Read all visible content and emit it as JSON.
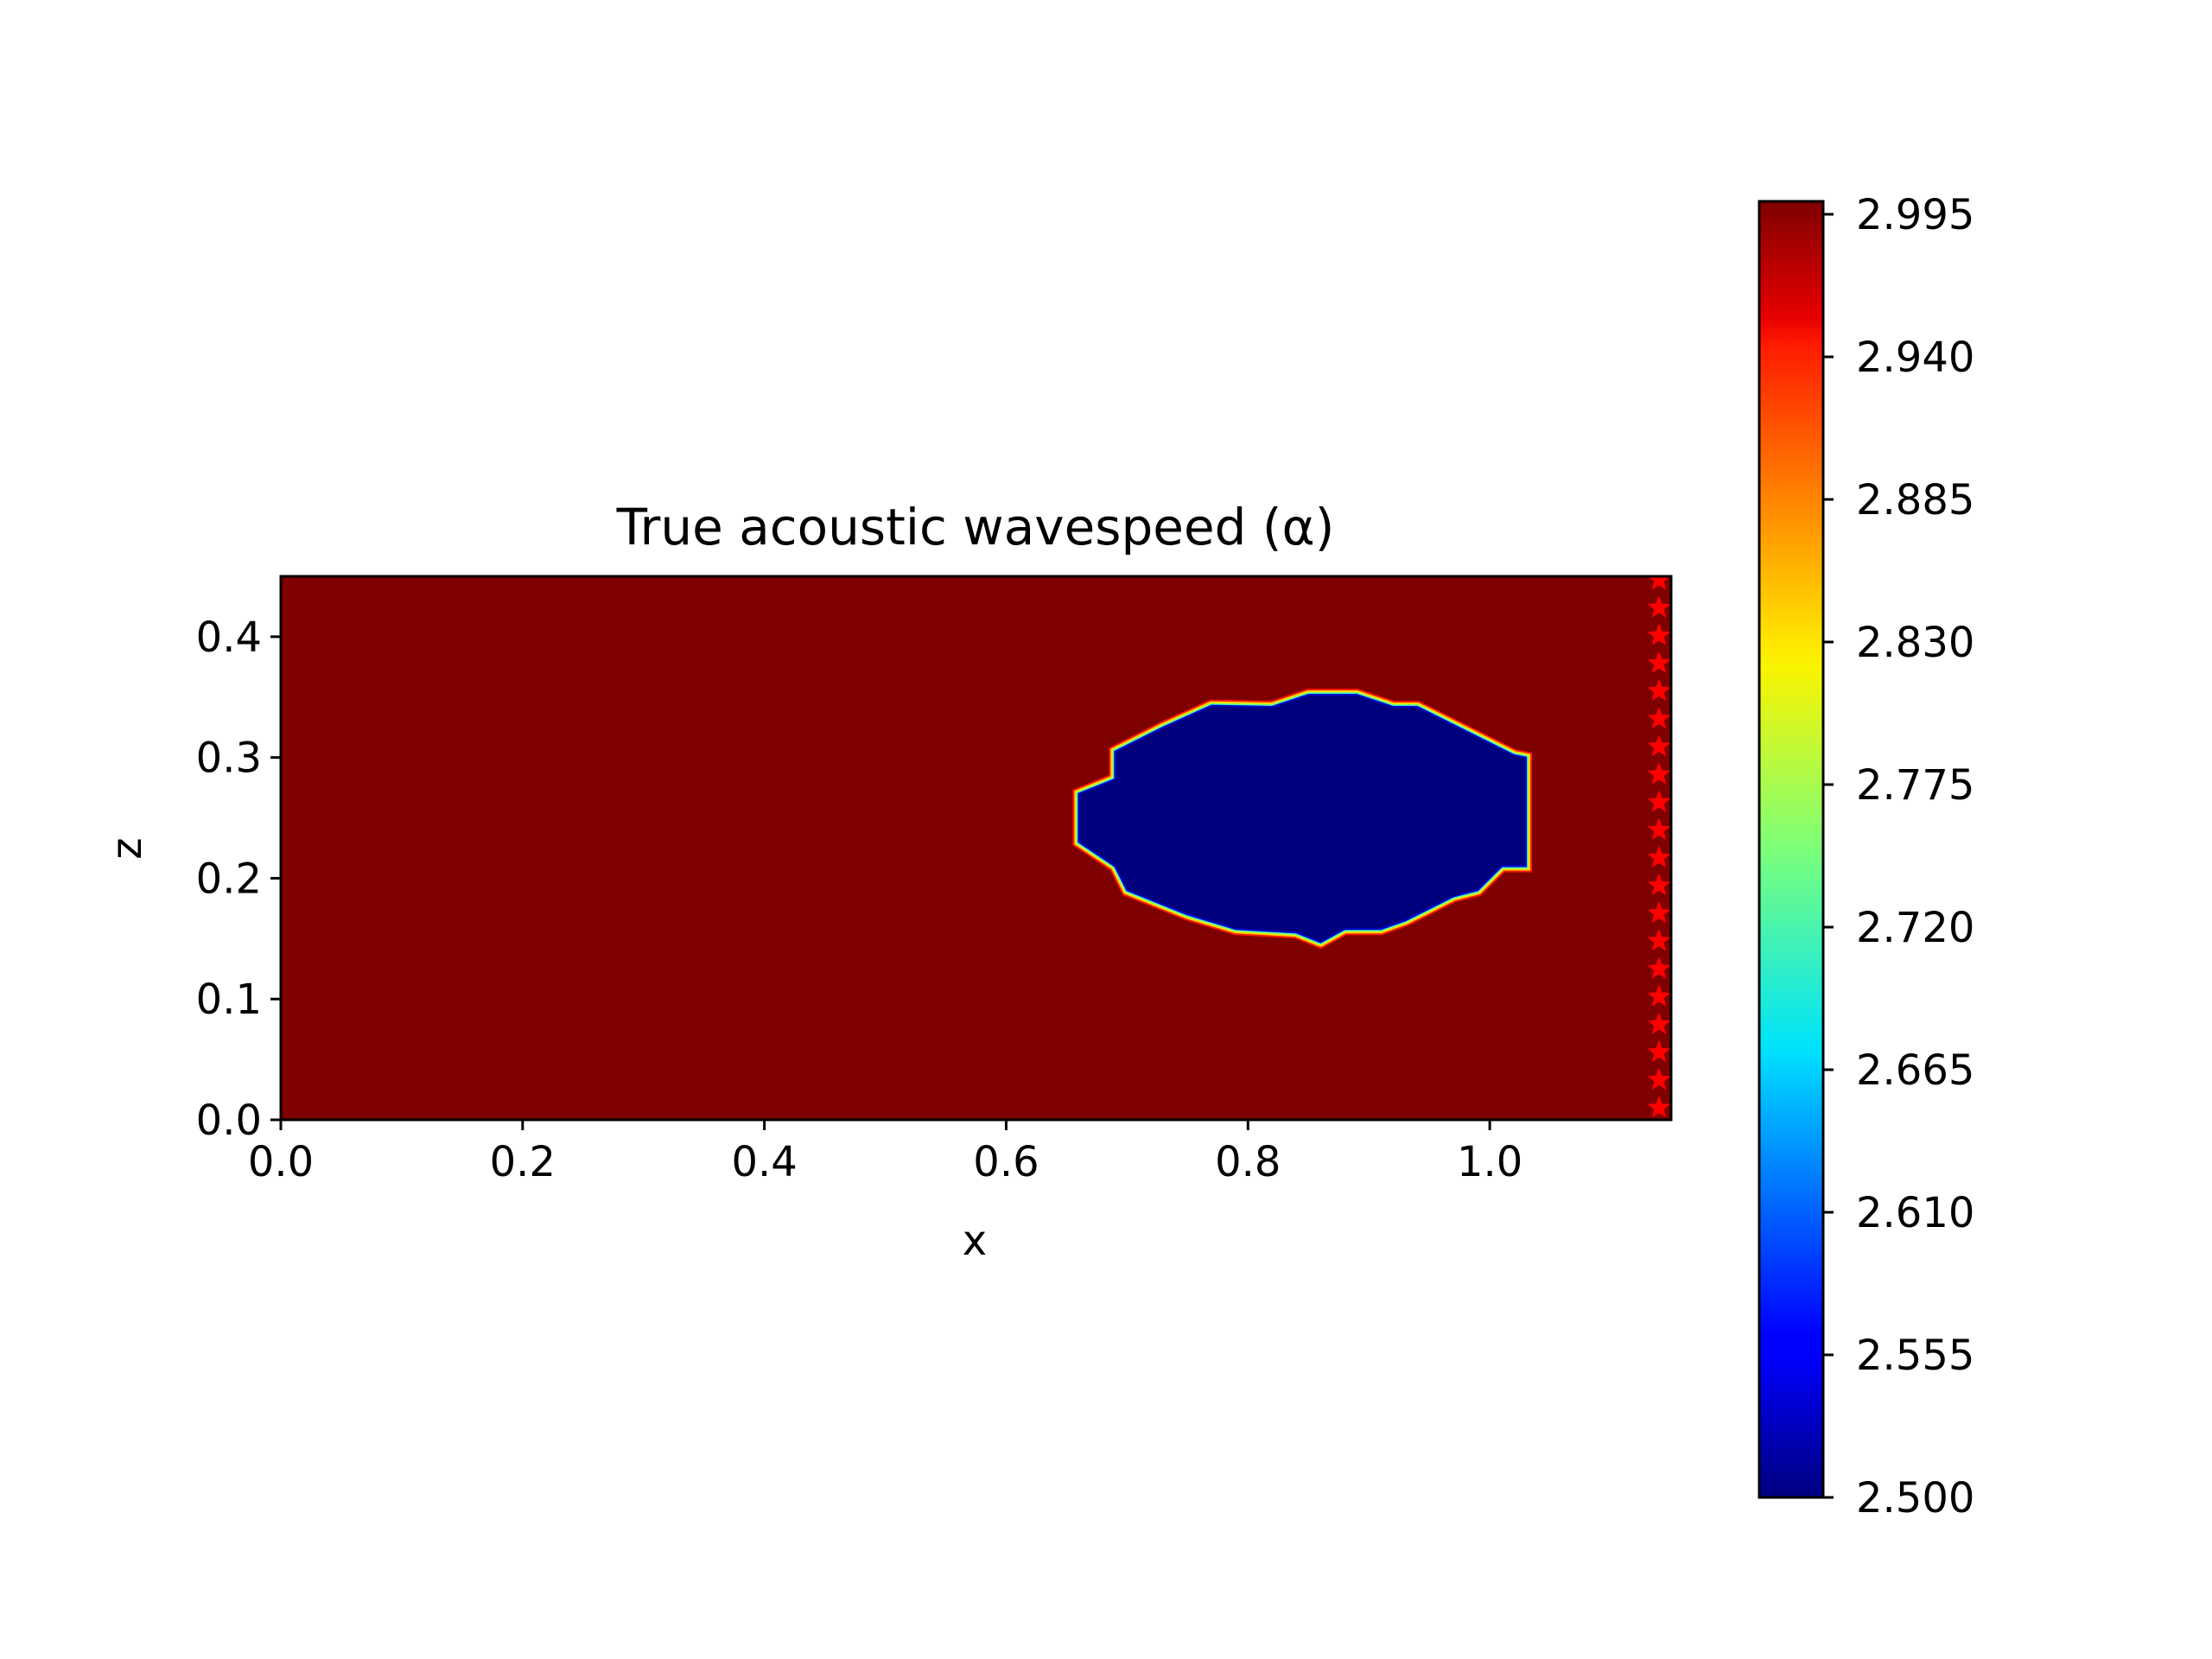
{
  "chart_data": {
    "type": "heatmap",
    "title": "True acoustic wavespeed (α)",
    "xlabel": "x",
    "ylabel": "z",
    "xlim": [
      0.0,
      1.15
    ],
    "ylim": [
      0.0,
      0.45
    ],
    "xticks": [
      "0.0",
      "0.2",
      "0.4",
      "0.6",
      "0.8",
      "1.0"
    ],
    "yticks": [
      "0.0",
      "0.1",
      "0.2",
      "0.3",
      "0.4"
    ],
    "colormap": "jet",
    "color_range": [
      2.5,
      3.0
    ],
    "colorbar_ticks": [
      "2.500",
      "2.555",
      "2.610",
      "2.665",
      "2.720",
      "2.775",
      "2.830",
      "2.885",
      "2.940",
      "2.995"
    ],
    "background_value": 3.0,
    "inclusion": {
      "value": 2.5,
      "shape": "polygon",
      "vertices": [
        [
          0.66,
          0.23
        ],
        [
          0.66,
          0.27
        ],
        [
          0.69,
          0.282
        ],
        [
          0.69,
          0.305
        ],
        [
          0.73,
          0.325
        ],
        [
          0.77,
          0.343
        ],
        [
          0.82,
          0.342
        ],
        [
          0.85,
          0.352
        ],
        [
          0.89,
          0.352
        ],
        [
          0.92,
          0.342
        ],
        [
          0.94,
          0.342
        ],
        [
          0.98,
          0.322
        ],
        [
          1.02,
          0.302
        ],
        [
          1.03,
          0.3
        ],
        [
          1.03,
          0.21
        ],
        [
          1.01,
          0.21
        ],
        [
          0.99,
          0.19
        ],
        [
          0.97,
          0.185
        ],
        [
          0.93,
          0.165
        ],
        [
          0.91,
          0.158
        ],
        [
          0.88,
          0.158
        ],
        [
          0.86,
          0.147
        ],
        [
          0.84,
          0.155
        ],
        [
          0.79,
          0.158
        ],
        [
          0.75,
          0.17
        ],
        [
          0.7,
          0.19
        ],
        [
          0.69,
          0.21
        ]
      ]
    },
    "receivers": {
      "marker": "star",
      "color": "#ff0000",
      "x": 1.14,
      "z": [
        0.01,
        0.033,
        0.056,
        0.079,
        0.102,
        0.125,
        0.148,
        0.171,
        0.194,
        0.217,
        0.24,
        0.263,
        0.286,
        0.309,
        0.332,
        0.355,
        0.378,
        0.401,
        0.424,
        0.447
      ]
    }
  }
}
